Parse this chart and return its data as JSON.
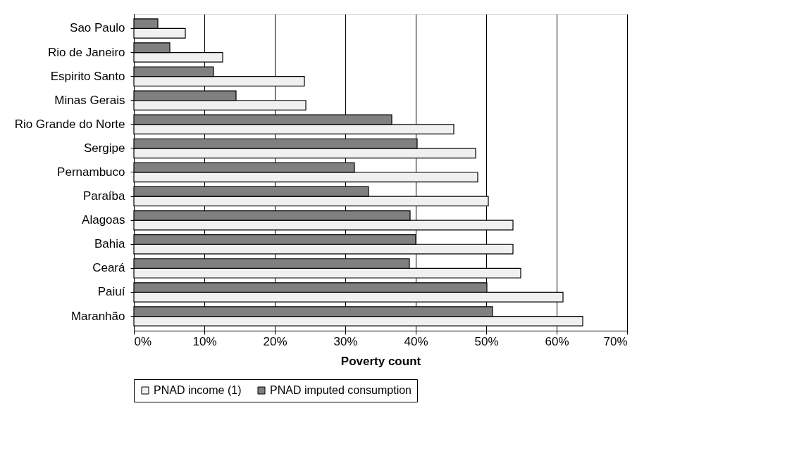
{
  "chart_data": {
    "type": "bar",
    "orientation": "horizontal",
    "xlabel": "Poverty count",
    "categories": [
      "Sao Paulo",
      "Rio de Janeiro",
      "Espirito Santo",
      "Minas Gerais",
      "Rio Grande do Norte",
      "Sergipe",
      "Pernambuco",
      "Paraíba",
      "Alagoas",
      "Bahia",
      "Ceará",
      "Paiuí",
      "Maranhão"
    ],
    "series": [
      {
        "name": "PNAD income (1)",
        "color": "#f0f0f0",
        "values": [
          7.3,
          12.6,
          24.2,
          24.4,
          45.4,
          48.5,
          48.8,
          50.3,
          53.8,
          53.8,
          54.9,
          60.9,
          63.7
        ]
      },
      {
        "name": "PNAD imputed consumption",
        "color": "#808080",
        "values": [
          3.4,
          5.1,
          11.3,
          14.5,
          36.6,
          40.2,
          31.3,
          33.3,
          39.2,
          40.0,
          39.1,
          50.1,
          50.9
        ]
      }
    ],
    "xlim": [
      0,
      70
    ],
    "xticks": [
      {
        "value": 0,
        "label": "0%"
      },
      {
        "value": 10,
        "label": "10%"
      },
      {
        "value": 20,
        "label": "20%"
      },
      {
        "value": 30,
        "label": "30%"
      },
      {
        "value": 40,
        "label": "40%"
      },
      {
        "value": 50,
        "label": "50%"
      },
      {
        "value": 60,
        "label": "60%"
      },
      {
        "value": 70,
        "label": "70%"
      }
    ],
    "grid": "x",
    "legend": "bottom"
  }
}
